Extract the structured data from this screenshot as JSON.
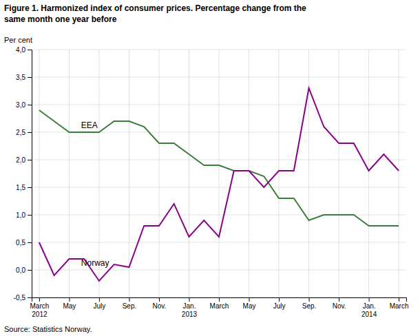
{
  "chart_data": {
    "type": "line",
    "title": "Figure 1. Harmonized index of consumer prices. Percentage change from the\nsame month one year before",
    "y_label": "Per cent",
    "source": "Source: Statistics Norway.",
    "categories": [
      "March\n2012",
      null,
      "May",
      null,
      "July",
      null,
      "Sep.",
      null,
      "Nov.",
      null,
      "Jan.\n2013",
      null,
      "March",
      null,
      "May",
      null,
      "July",
      null,
      "Sep.",
      null,
      "Nov.",
      null,
      "Jan.\n2014",
      null,
      "March"
    ],
    "series": [
      {
        "name": "EEA",
        "color": "#3a7d3a",
        "values": [
          2.9,
          2.7,
          2.5,
          2.5,
          2.5,
          2.7,
          2.7,
          2.6,
          2.3,
          2.3,
          2.1,
          1.9,
          1.9,
          1.8,
          1.8,
          1.7,
          1.3,
          1.3,
          0.9,
          1.0,
          1.0,
          1.0,
          0.8,
          0.8,
          0.8
        ]
      },
      {
        "name": "Norway",
        "color": "#8b008b",
        "values": [
          0.5,
          -0.1,
          0.2,
          0.2,
          -0.2,
          0.1,
          0.05,
          0.8,
          0.8,
          1.2,
          0.6,
          0.9,
          0.6,
          1.8,
          1.8,
          1.5,
          1.8,
          1.8,
          3.3,
          2.6,
          2.3,
          2.3,
          1.8,
          2.1,
          1.8
        ]
      }
    ],
    "annotations": [
      {
        "text": "EEA",
        "x": 2.8,
        "y": 2.57
      },
      {
        "text": "Norway",
        "x": 2.8,
        "y": 0.08
      }
    ],
    "ylim": [
      -0.5,
      4.0
    ],
    "yticks": [
      {
        "value": -0.5,
        "label": "-0,5"
      },
      {
        "value": 0.0,
        "label": "0,0"
      },
      {
        "value": 0.5,
        "label": "0,5"
      },
      {
        "value": 1.0,
        "label": "1,0"
      },
      {
        "value": 1.5,
        "label": "1,5"
      },
      {
        "value": 2.0,
        "label": "2,0"
      },
      {
        "value": 2.5,
        "label": "2,5"
      },
      {
        "value": 3.0,
        "label": "3,0"
      },
      {
        "value": 3.5,
        "label": "3,5"
      },
      {
        "value": 4.0,
        "label": "4,0"
      }
    ],
    "grid": true
  }
}
